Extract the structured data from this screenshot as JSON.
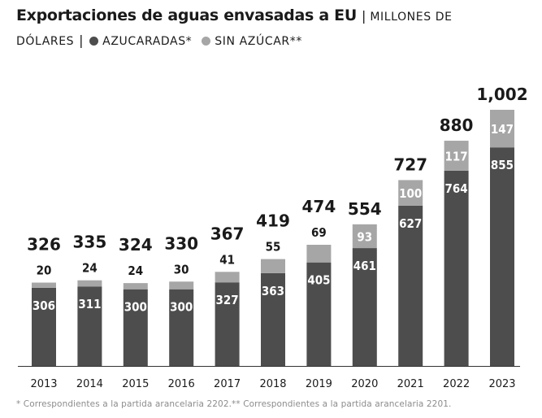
{
  "header": {
    "title": "Exportaciones de aguas envasadas a EU",
    "separator": "|",
    "unit_line1": "MILLONES DE",
    "unit_line2": "DÓLARES",
    "separator2": "|",
    "legend_sugar": "AZUCARADAS*",
    "legend_nosugar": "SIN AZÚCAR**"
  },
  "colors": {
    "sugar": "#4d4d4d",
    "nosugar": "#a6a6a6",
    "axis": "#333333",
    "text": "#1a1a1a"
  },
  "chart_data": {
    "type": "bar",
    "stacked": true,
    "title": "Exportaciones de aguas envasadas a EU",
    "ylabel": "Millones de dólares",
    "categories": [
      "2013",
      "2014",
      "2015",
      "2016",
      "2017",
      "2018",
      "2019",
      "2020",
      "2021",
      "2022",
      "2023"
    ],
    "series": [
      {
        "name": "AZUCARADAS*",
        "values": [
          306,
          311,
          300,
          300,
          327,
          363,
          405,
          461,
          627,
          764,
          855
        ]
      },
      {
        "name": "SIN AZÚCAR**",
        "values": [
          20,
          24,
          24,
          30,
          41,
          55,
          69,
          93,
          100,
          117,
          147
        ]
      }
    ],
    "totals": [
      "326",
      "335",
      "324",
      "330",
      "367",
      "419",
      "474",
      "554",
      "727",
      "880",
      "1,002"
    ],
    "ylim": [
      0,
      1002
    ],
    "grid": false,
    "legend": "top-left"
  },
  "footnote": "* Correspondientes a la partida arancelaria 2202.** Correspondientes a la partida arancelaria 2201."
}
